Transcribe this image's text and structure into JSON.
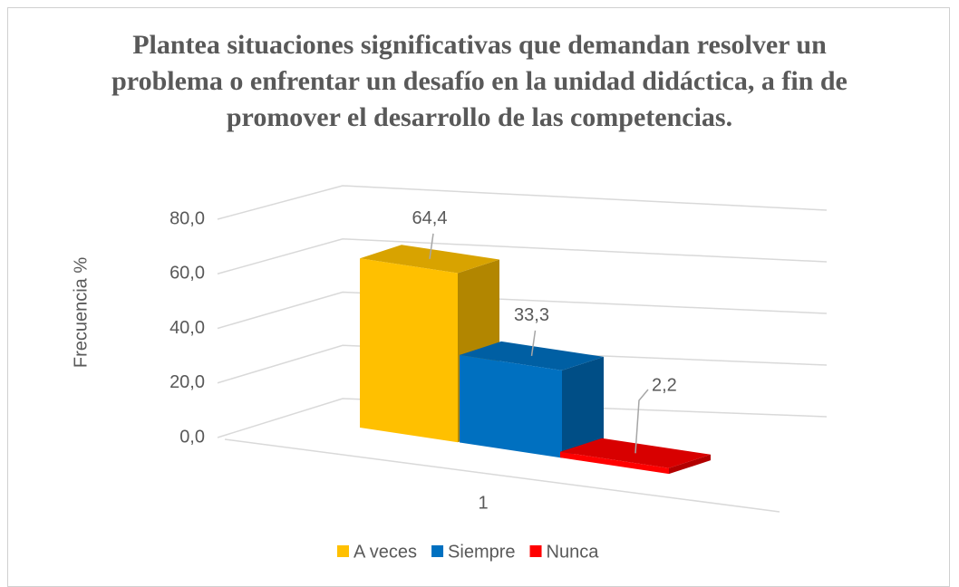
{
  "chart_data": {
    "type": "bar3d",
    "title": "Plantea situaciones significativas que demandan resolver un problema o enfrentar un desafío en la unidad didáctica, a fin de promover el desarrollo de las competencias.",
    "y_label": "Frecuencia %",
    "categories": [
      "1"
    ],
    "series": [
      {
        "name": "A veces",
        "color": "#FFC000",
        "values": [
          64.4
        ],
        "value_labels": [
          "64,4"
        ]
      },
      {
        "name": "Siempre",
        "color": "#0070C0",
        "values": [
          33.3
        ],
        "value_labels": [
          "33,3"
        ]
      },
      {
        "name": "Nunca",
        "color": "#FF0000",
        "values": [
          2.2
        ],
        "value_labels": [
          "2,2"
        ]
      }
    ],
    "ylim": [
      0,
      80
    ],
    "yticks": [
      {
        "value": 0,
        "label": "0,0"
      },
      {
        "value": 20,
        "label": "20,0"
      },
      {
        "value": 40,
        "label": "40,0"
      },
      {
        "value": 60,
        "label": "60,0"
      },
      {
        "value": 80,
        "label": "80,0"
      }
    ],
    "grid": true,
    "legend": "bottom"
  }
}
